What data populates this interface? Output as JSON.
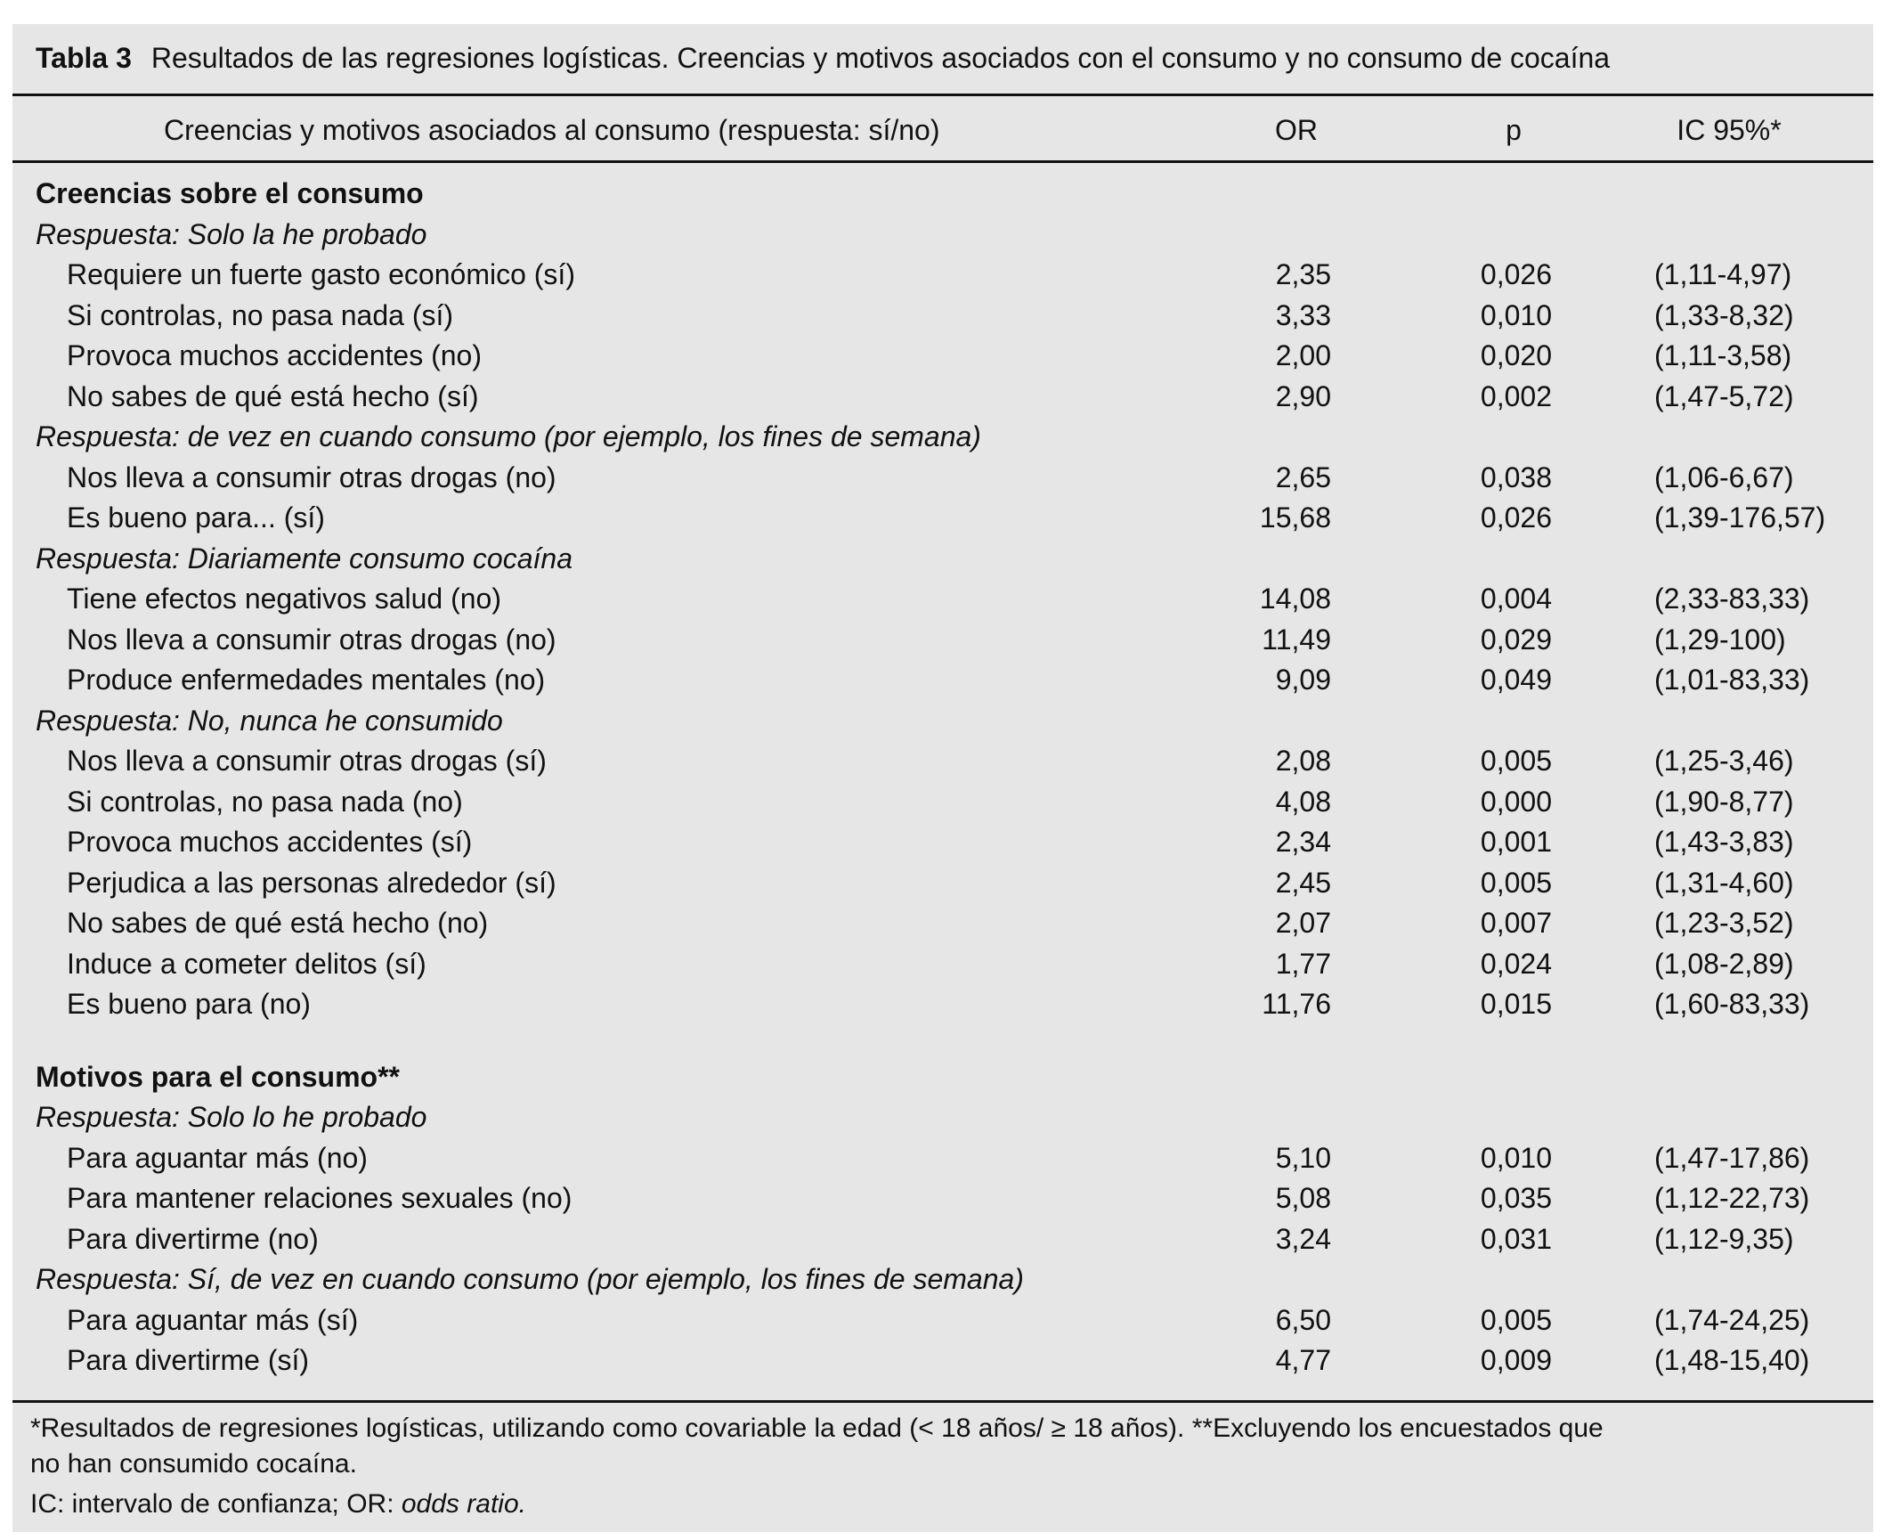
{
  "title": {
    "label": "Tabla 3",
    "text": "Resultados de las regresiones logísticas. Creencias y motivos asociados con el consumo y no consumo de cocaína"
  },
  "header": {
    "col1": "Creencias y motivos asociados al consumo (respuesta: sí/no)",
    "col2": "OR",
    "col3": "p",
    "col4": "IC 95%*"
  },
  "sections": [
    {
      "title": "Creencias sobre el consumo",
      "groups": [
        {
          "label": "Respuesta: Solo la he probado",
          "rows": [
            {
              "label": "Requiere un fuerte gasto económico (sí)",
              "or": "2,35",
              "p": "0,026",
              "ci": "(1,11-4,97)"
            },
            {
              "label": "Si controlas, no pasa nada (sí)",
              "or": "3,33",
              "p": "0,010",
              "ci": "(1,33-8,32)"
            },
            {
              "label": "Provoca muchos accidentes (no)",
              "or": "2,00",
              "p": "0,020",
              "ci": "(1,11-3,58)"
            },
            {
              "label": "No sabes de qué está hecho (sí)",
              "or": "2,90",
              "p": "0,002",
              "ci": "(1,47-5,72)"
            }
          ]
        },
        {
          "label": "Respuesta: de vez en cuando consumo (por ejemplo, los fines de semana)",
          "rows": [
            {
              "label": "Nos lleva a consumir otras drogas (no)",
              "or": "2,65",
              "p": "0,038",
              "ci": "(1,06-6,67)"
            },
            {
              "label": "Es bueno para... (sí)",
              "or": "15,68",
              "p": "0,026",
              "ci": "(1,39-176,57)"
            }
          ]
        },
        {
          "label": "Respuesta: Diariamente consumo cocaína",
          "rows": [
            {
              "label": "Tiene efectos negativos salud (no)",
              "or": "14,08",
              "p": "0,004",
              "ci": "(2,33-83,33)"
            },
            {
              "label": "Nos lleva a consumir otras drogas (no)",
              "or": "11,49",
              "p": "0,029",
              "ci": "(1,29-100)"
            },
            {
              "label": "Produce enfermedades mentales (no)",
              "or": "9,09",
              "p": "0,049",
              "ci": "(1,01-83,33)"
            }
          ]
        },
        {
          "label": "Respuesta: No, nunca he consumido",
          "rows": [
            {
              "label": "Nos lleva a consumir otras drogas (sí)",
              "or": "2,08",
              "p": "0,005",
              "ci": "(1,25-3,46)"
            },
            {
              "label": "Si controlas, no pasa nada (no)",
              "or": "4,08",
              "p": "0,000",
              "ci": "(1,90-8,77)"
            },
            {
              "label": "Provoca muchos accidentes (sí)",
              "or": "2,34",
              "p": "0,001",
              "ci": "(1,43-3,83)"
            },
            {
              "label": "Perjudica a las personas alrededor (sí)",
              "or": "2,45",
              "p": "0,005",
              "ci": "(1,31-4,60)"
            },
            {
              "label": "No sabes de qué está hecho (no)",
              "or": "2,07",
              "p": "0,007",
              "ci": "(1,23-3,52)"
            },
            {
              "label": "Induce a cometer delitos (sí)",
              "or": "1,77",
              "p": "0,024",
              "ci": "(1,08-2,89)"
            },
            {
              "label": "Es bueno para (no)",
              "or": "11,76",
              "p": "0,015",
              "ci": "(1,60-83,33)"
            }
          ]
        }
      ]
    },
    {
      "title": "Motivos para el consumo**",
      "groups": [
        {
          "label": "Respuesta: Solo lo he probado",
          "rows": [
            {
              "label": "Para aguantar más (no)",
              "or": "5,10",
              "p": "0,010",
              "ci": "(1,47-17,86)"
            },
            {
              "label": "Para mantener relaciones sexuales (no)",
              "or": "5,08",
              "p": "0,035",
              "ci": "(1,12-22,73)"
            },
            {
              "label": "Para divertirme (no)",
              "or": "3,24",
              "p": "0,031",
              "ci": "(1,12-9,35)"
            }
          ]
        },
        {
          "label": "Respuesta: Sí, de vez en cuando consumo (por ejemplo, los fines de semana)",
          "rows": [
            {
              "label": "Para aguantar más (sí)",
              "or": "6,50",
              "p": "0,005",
              "ci": "(1,74-24,25)"
            },
            {
              "label": "Para divertirme (sí)",
              "or": "4,77",
              "p": "0,009",
              "ci": "(1,48-15,40)"
            }
          ]
        }
      ]
    }
  ],
  "footnotes": {
    "line1": "*Resultados de regresiones logísticas, utilizando como covariable la edad (< 18 años/ ≥ 18 años). **Excluyendo los encuestados que",
    "line2": "no han consumido cocaína.",
    "line3_prefix": "IC: intervalo de confianza; OR: ",
    "line3_italic": "odds ratio."
  }
}
